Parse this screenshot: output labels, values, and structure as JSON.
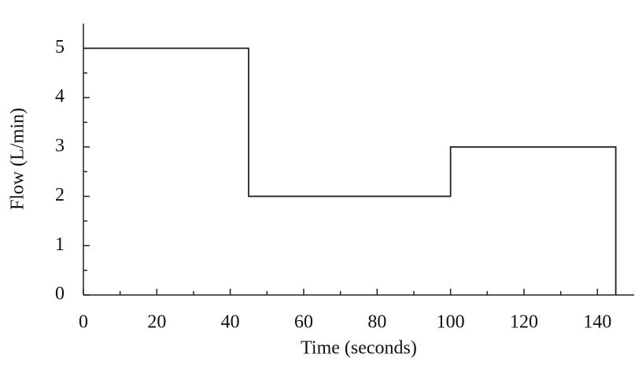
{
  "chart_data": {
    "type": "line",
    "xlabel": "Time (seconds)",
    "ylabel": "Flow (L/min)",
    "x": [
      0,
      45,
      45,
      100,
      100,
      145,
      145
    ],
    "series": [
      {
        "color": "#222222",
        "values": [
          5,
          5,
          2,
          2,
          3,
          3,
          0
        ]
      }
    ],
    "xlim": [
      0,
      150
    ],
    "ylim": [
      0,
      5.5
    ],
    "xticks": [
      0,
      20,
      40,
      60,
      80,
      100,
      120,
      140
    ],
    "yticks": [
      0,
      1,
      2,
      3,
      4,
      5
    ],
    "grid": false
  }
}
